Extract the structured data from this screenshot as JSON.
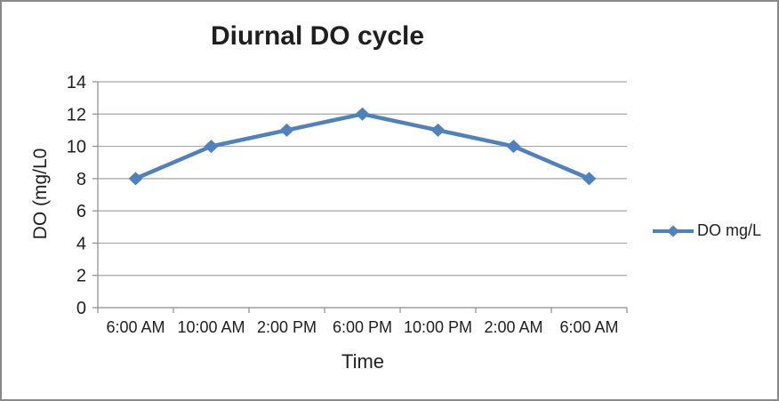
{
  "chart_data": {
    "type": "line",
    "title": "Diurnal DO cycle",
    "xlabel": "Time",
    "ylabel": "DO (mg/L0",
    "categories": [
      "6:00 AM",
      "10:00 AM",
      "2:00 PM",
      "6:00 PM",
      "10:00 PM",
      "2:00 AM",
      "6:00 AM"
    ],
    "series": [
      {
        "name": "DO mg/L",
        "values": [
          8,
          10,
          11,
          12,
          11,
          10,
          8
        ]
      }
    ],
    "ylim": [
      0,
      14
    ],
    "ytick_step": 2,
    "yticks": [
      0,
      2,
      4,
      6,
      8,
      10,
      12,
      14
    ],
    "grid": true,
    "legend_position": "right",
    "marker": "diamond",
    "colors": {
      "series": "#4F81BD",
      "gridline": "#A6A6A6",
      "axis": "#8C8C8C",
      "text": "#1F1F1F",
      "border": "#898989",
      "background": "#FFFFFF"
    }
  }
}
